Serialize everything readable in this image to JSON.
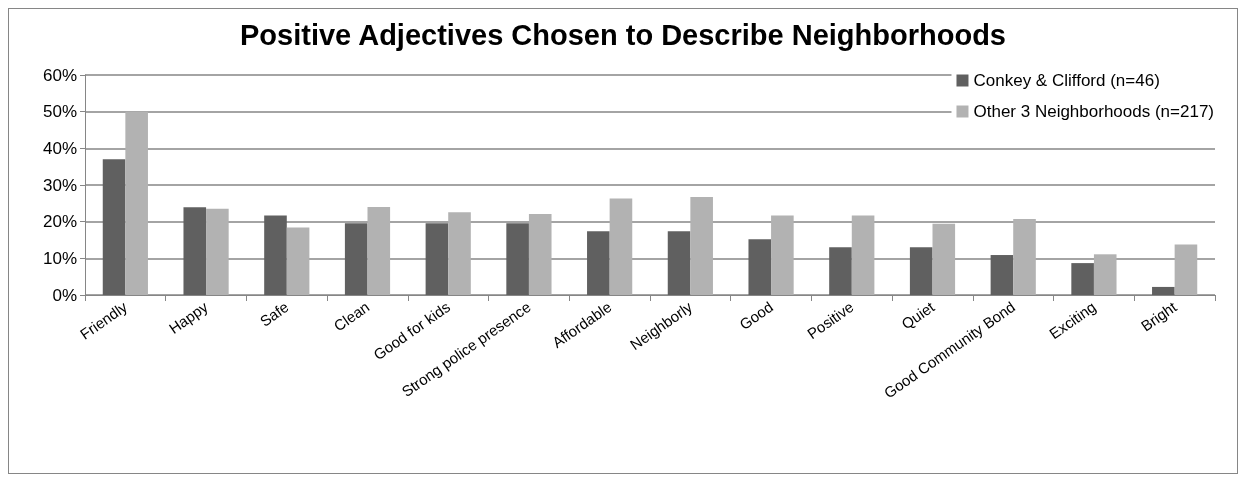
{
  "chart_data": {
    "type": "bar",
    "title": "Positive Adjectives Chosen to Describe Neighborhoods",
    "categories": [
      "Friendly",
      "Happy",
      "Safe",
      "Clean",
      "Good for kids",
      "Strong police presence",
      "Affordable",
      "Neighborly",
      "Good",
      "Positive",
      "Quiet",
      "Good Community Bond",
      "Exciting",
      "Bright"
    ],
    "series": [
      {
        "name": "Conkey & Clifford (n=46)",
        "color": "#606060",
        "values": [
          37,
          23.9,
          21.7,
          19.6,
          19.6,
          19.6,
          17.4,
          17.4,
          15.2,
          13,
          13,
          10.9,
          8.7,
          2.2
        ]
      },
      {
        "name": "Other 3 Neighborhoods (n=217)",
        "color": "#b2b2b2",
        "values": [
          50,
          23.5,
          18.4,
          24,
          22.6,
          22.1,
          26.3,
          26.7,
          21.7,
          21.7,
          19.4,
          20.7,
          11.1,
          13.8
        ]
      }
    ],
    "ylim": [
      0,
      60
    ],
    "yticks": [
      {
        "value": 0,
        "label": "0%"
      },
      {
        "value": 10,
        "label": "10%"
      },
      {
        "value": 20,
        "label": "20%"
      },
      {
        "value": 30,
        "label": "30%"
      },
      {
        "value": 40,
        "label": "40%"
      },
      {
        "value": 50,
        "label": "50%"
      },
      {
        "value": 60,
        "label": "60%"
      }
    ],
    "grid": "y",
    "legend": "top right"
  }
}
